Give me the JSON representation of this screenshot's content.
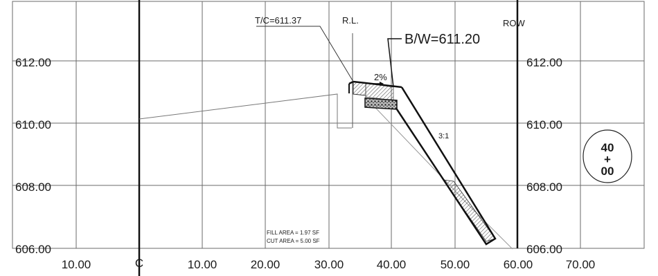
{
  "elevation_labels": {
    "left": [
      "612.00",
      "610.00",
      "608.00",
      "606.00"
    ],
    "right": [
      "612.00",
      "610.00",
      "608.00",
      "606.00"
    ]
  },
  "station_labels": [
    "10.00",
    "10.00",
    "20.00",
    "30.00",
    "40.00",
    "50.00",
    "60.00",
    "70.00"
  ],
  "centerline_symbol": "C",
  "annotations": {
    "top_of_curb": "T/C=611.37",
    "reference_line": "R.L.",
    "back_of_walk": "B/W=611.20",
    "right_of_way": "ROW",
    "cross_slope": "2%",
    "side_slope": "3:1"
  },
  "areas": {
    "fill": "FILL AREA = 1.97 SF",
    "cut": "CUT AREA = 5.00 SF"
  },
  "station_badge": {
    "top": "40",
    "middle": "+",
    "bottom": "00"
  }
}
